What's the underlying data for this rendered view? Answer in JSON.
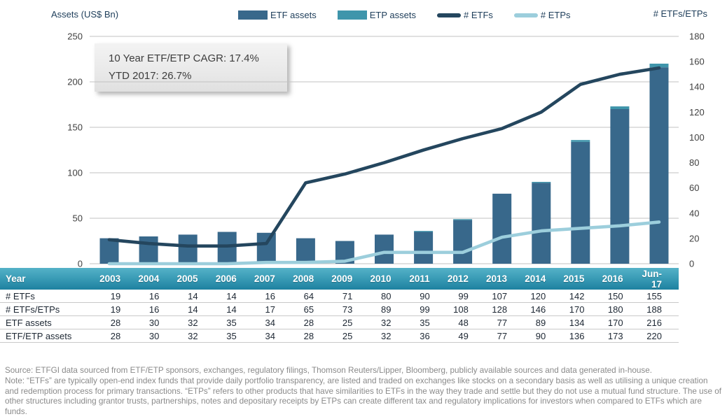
{
  "chart": {
    "left_axis_title": "Assets (US$ Bn)",
    "right_axis_title": "# ETFs/ETPs",
    "annotation": {
      "line1": "10 Year ETF/ETP CAGR: 17.4%",
      "line2": "YTD 2017: 26.7%"
    }
  },
  "chart_data": {
    "type": "combo-bar-line",
    "categories": [
      "2003",
      "2004",
      "2005",
      "2006",
      "2007",
      "2008",
      "2009",
      "2010",
      "2011",
      "2012",
      "2013",
      "2014",
      "2015",
      "2016",
      "Jun-17"
    ],
    "series": [
      {
        "name": "ETF assets",
        "kind": "bar",
        "axis": "left",
        "color": "#38688B",
        "values": [
          28,
          30,
          32,
          35,
          34,
          28,
          25,
          32,
          35,
          48,
          77,
          89,
          134,
          170,
          216
        ]
      },
      {
        "name": "ETP assets",
        "kind": "bar-stacked-on-top",
        "axis": "left",
        "color": "#3F95AB",
        "values": [
          0,
          0,
          0,
          0,
          0,
          0,
          0,
          0,
          1,
          1,
          0,
          1,
          2,
          3,
          4
        ]
      },
      {
        "name": "# ETFs",
        "kind": "line",
        "axis": "right",
        "color": "#24465E",
        "values": [
          19,
          16,
          14,
          14,
          16,
          64,
          71,
          80,
          90,
          99,
          107,
          120,
          142,
          150,
          155
        ]
      },
      {
        "name": "# ETPs",
        "kind": "line",
        "axis": "right",
        "color": "#9CCEDC",
        "values": [
          0,
          0,
          0,
          0,
          1,
          1,
          2,
          9,
          9,
          9,
          21,
          26,
          28,
          30,
          33
        ]
      }
    ],
    "left_axis": {
      "title": "Assets (US$ Bn)",
      "min": 0,
      "max": 250,
      "step": 50,
      "ticks": [
        "250",
        "200",
        "150",
        "100",
        "50",
        "0"
      ]
    },
    "right_axis": {
      "title": "# ETFs/ETPs",
      "min": 0,
      "max": 180,
      "step": 20,
      "ticks": [
        "180",
        "160",
        "140",
        "120",
        "100",
        "80",
        "60",
        "40",
        "20",
        "0"
      ]
    },
    "grid": "horizontal-on",
    "legend_position": "top-center",
    "colors": {
      "gridline": "#C2C2C2",
      "axis_tick_text": "#3F3F3F",
      "heading_text": "#21405C",
      "table_header_top": "#55B2C8",
      "table_header_bottom": "#1E81A0",
      "table_row_border": "#C9C9C9",
      "footnote_text": "#8A8A8A"
    }
  },
  "table": {
    "header_row": [
      "Year",
      "2003",
      "2004",
      "2005",
      "2006",
      "2007",
      "2008",
      "2009",
      "2010",
      "2011",
      "2012",
      "2013",
      "2014",
      "2015",
      "2016",
      "Jun-17"
    ],
    "rows": [
      {
        "label": "# ETFs",
        "values": [
          "19",
          "16",
          "14",
          "14",
          "16",
          "64",
          "71",
          "80",
          "90",
          "99",
          "107",
          "120",
          "142",
          "150",
          "155"
        ]
      },
      {
        "label": "# ETFs/ETPs",
        "values": [
          "19",
          "16",
          "14",
          "14",
          "17",
          "65",
          "73",
          "89",
          "99",
          "108",
          "128",
          "146",
          "170",
          "180",
          "188"
        ]
      },
      {
        "label": "ETF assets",
        "values": [
          "28",
          "30",
          "32",
          "35",
          "34",
          "28",
          "25",
          "32",
          "35",
          "48",
          "77",
          "89",
          "134",
          "170",
          "216"
        ]
      },
      {
        "label": "ETF/ETP assets",
        "values": [
          "28",
          "30",
          "32",
          "35",
          "34",
          "28",
          "25",
          "32",
          "36",
          "49",
          "77",
          "90",
          "136",
          "173",
          "220"
        ]
      }
    ]
  },
  "footer": {
    "source": "Source: ETFGI data sourced from ETF/ETP sponsors, exchanges, regulatory filings, Thomson Reuters/Lipper, Bloomberg, publicly available sources and data generated in-house.",
    "note": "Note: “ETFs” are typically open-end index funds that provide daily portfolio transparency, are listed and traded on exchanges like stocks on a secondary basis as well as utilising a unique creation and redemption process for primary transactions. “ETPs” refers to other products that have similarities to ETFs in the way they trade and settle but they do not use a mutual fund structure. The use of other structures including grantor trusts, partnerships, notes and depositary receipts by ETPs can create different tax and regulatory implications for investors when compared to ETFs which are funds."
  }
}
